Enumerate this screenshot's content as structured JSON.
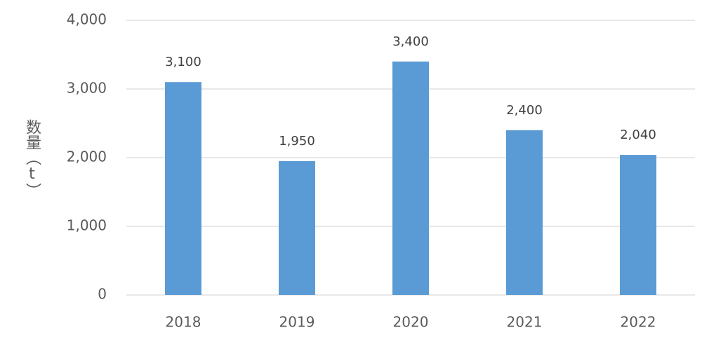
{
  "chart_data": {
    "type": "bar",
    "y_label": "数量（t）",
    "categories": [
      "2018",
      "2019",
      "2020",
      "2021",
      "2022"
    ],
    "values": [
      3100,
      1950,
      3400,
      2400,
      2040
    ],
    "value_labels": [
      "3,100",
      "1,950",
      "3,400",
      "2,400",
      "2,040"
    ],
    "color": "#5b9bd5",
    "ylim": [
      0,
      4000
    ],
    "yticks": [
      0,
      {
        "value": 1000,
        "label": "1,000"
      },
      {
        "value": 2000,
        "label": "2,000"
      },
      {
        "value": 3000,
        "label": "3,000"
      },
      {
        "value": 4000,
        "label": "4,000"
      }
    ],
    "grid": true
  }
}
